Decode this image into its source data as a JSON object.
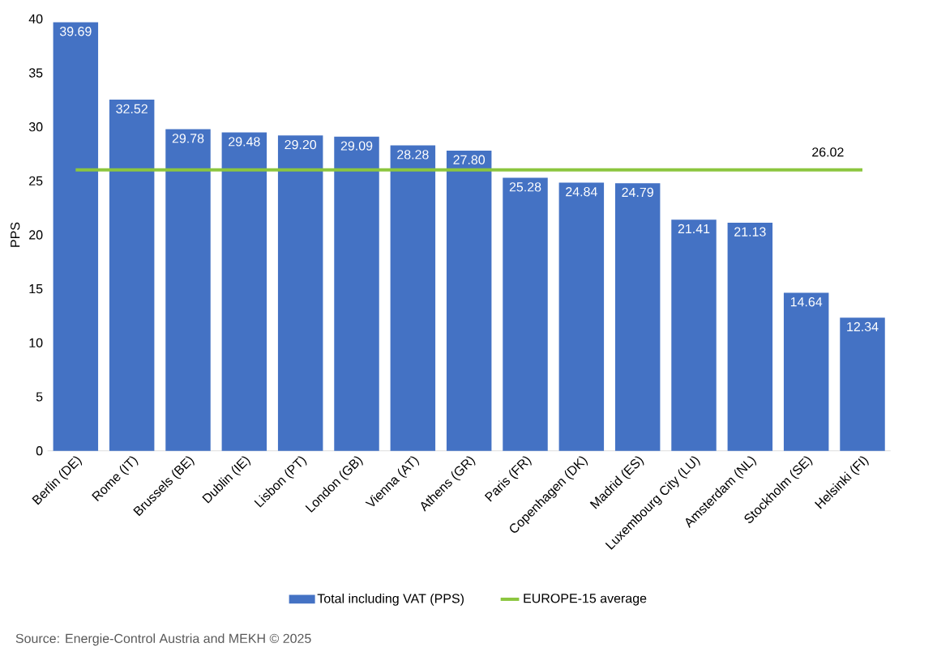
{
  "chart_data": {
    "type": "bar",
    "ylabel": "PPS",
    "categories": [
      "Berlin (DE)",
      "Rome (IT)",
      "Brussels (BE)",
      "Dublin (IE)",
      "Lisbon (PT)",
      "London (GB)",
      "Vienna (AT)",
      "Athens (GR)",
      "Paris (FR)",
      "Copenhagen (DK)",
      "Madrid (ES)",
      "Luxembourg City (LU)",
      "Amsterdam (NL)",
      "Stockholm (SE)",
      "Helsinki (FI)"
    ],
    "series": [
      {
        "name": "Total including VAT (PPS)",
        "color": "#4472c4",
        "values": [
          39.69,
          32.52,
          29.78,
          29.48,
          29.2,
          29.09,
          28.28,
          27.8,
          25.28,
          24.84,
          24.79,
          21.41,
          21.13,
          14.64,
          12.34
        ],
        "value_labels": [
          "39.69",
          "32.52",
          "29.78",
          "29.48",
          "29.20",
          "29.09",
          "28.28",
          "27.80",
          "25.28",
          "24.84",
          "24.79",
          "21.41",
          "21.13",
          "14.64",
          "12.34"
        ]
      },
      {
        "name": "EUROPE-15 average",
        "type": "line",
        "color": "#8cc63f",
        "values": [
          26.02,
          26.02,
          26.02,
          26.02,
          26.02,
          26.02,
          26.02,
          26.02,
          26.02,
          26.02,
          26.02,
          26.02,
          26.02,
          26.02,
          26.02
        ]
      }
    ],
    "ylim": [
      0,
      40
    ],
    "yticks": [
      0,
      5,
      10,
      15,
      20,
      25,
      30,
      35,
      40
    ],
    "legend": "bottom",
    "annotations": [
      {
        "text": "26.02",
        "x": "Helsinki (FI)",
        "y": 26.02
      },
      "Source: Energie-Control Austria and MEKH © 2025"
    ]
  }
}
